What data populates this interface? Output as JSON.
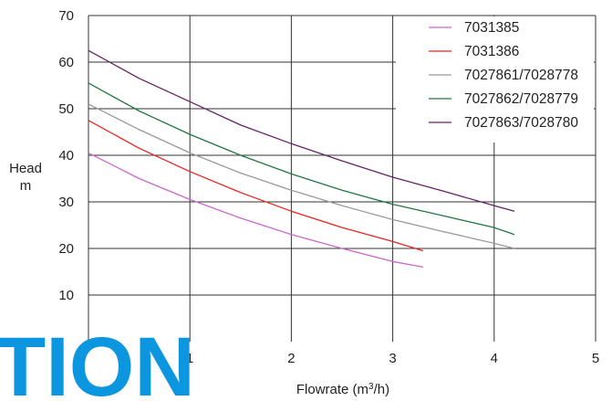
{
  "watermark_text": "TION",
  "chart_data": {
    "type": "line",
    "title": "",
    "xlabel": "Flowrate (m³/h)",
    "xlabel_base": "Flowrate (m",
    "xlabel_sup": "3",
    "xlabel_tail": "/h)",
    "ylabel_line1": "Head",
    "ylabel_line2": "m",
    "xlim": [
      0,
      5
    ],
    "ylim": [
      0,
      70
    ],
    "xticks": [
      1,
      2,
      3,
      4,
      5
    ],
    "yticks": [
      10,
      20,
      30,
      40,
      50,
      60,
      70
    ],
    "grid": true,
    "legend_position": "top-right",
    "series": [
      {
        "name": "7031385",
        "color": "#cc66cc",
        "x": [
          0,
          0.5,
          1,
          1.5,
          2,
          2.5,
          3,
          3.3
        ],
        "y": [
          40.5,
          35,
          30.5,
          26.5,
          23,
          20,
          17.2,
          16
        ]
      },
      {
        "name": "7031386",
        "color": "#ee2222",
        "x": [
          0,
          0.5,
          1,
          1.5,
          2,
          2.5,
          3,
          3.3
        ],
        "y": [
          47.5,
          41.5,
          36.5,
          32,
          28,
          24.5,
          21.5,
          19.5
        ]
      },
      {
        "name": "7027861/7028778",
        "color": "#999999",
        "x": [
          0,
          0.5,
          1,
          1.5,
          2,
          2.5,
          3,
          3.5,
          4,
          4.2
        ],
        "y": [
          51,
          45.5,
          40.5,
          36.2,
          32.5,
          29.2,
          26.2,
          23.6,
          21.1,
          20
        ]
      },
      {
        "name": "7027862/7028779",
        "color": "#227744",
        "x": [
          0,
          0.5,
          1,
          1.5,
          2,
          2.5,
          3,
          3.5,
          4,
          4.2
        ],
        "y": [
          55.5,
          49.5,
          44.5,
          40,
          36,
          32.5,
          29.5,
          27,
          24.5,
          23
        ]
      },
      {
        "name": "7027863/7028780",
        "color": "#662266",
        "x": [
          0,
          0.5,
          1,
          1.5,
          2,
          2.5,
          3,
          3.5,
          4,
          4.2
        ],
        "y": [
          62.5,
          56.5,
          51.5,
          46.5,
          42.5,
          38.8,
          35.3,
          32.3,
          29.2,
          28
        ]
      }
    ]
  }
}
